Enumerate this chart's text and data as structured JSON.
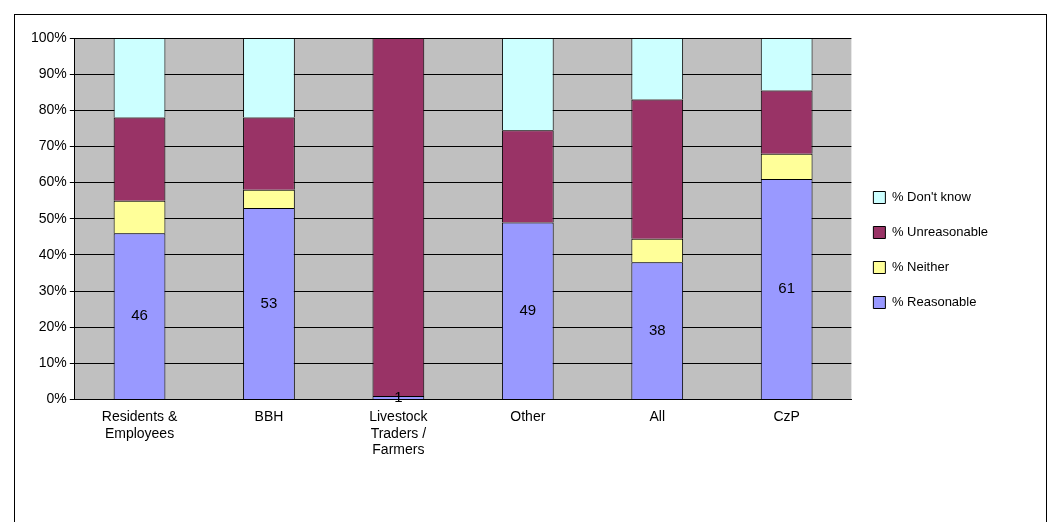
{
  "chart_data": {
    "type": "bar",
    "stacked": true,
    "categories": [
      "Residents & Employees",
      "BBH",
      "Livestock Traders / Farmers",
      "Other",
      "All",
      "CzP"
    ],
    "series": [
      {
        "name": "% Reasonable",
        "color": "#9999ff",
        "values": [
          46,
          53,
          1,
          49,
          38,
          61
        ],
        "value_labels": [
          "46",
          "53",
          "1",
          "49",
          "38",
          "61"
        ]
      },
      {
        "name": "% Neither",
        "color": "#ffff99",
        "values": [
          9,
          5,
          0,
          0,
          6.5,
          7
        ]
      },
      {
        "name": "% Unreasonable",
        "color": "#993366",
        "values": [
          23,
          20,
          99,
          25.5,
          38.5,
          17.5
        ]
      },
      {
        "name": "% Don't know",
        "color": "#ccffff",
        "values": [
          22,
          22,
          0,
          25.5,
          17,
          14.5
        ]
      }
    ],
    "ylim": [
      0,
      100
    ],
    "yticks": [
      {
        "value": 0,
        "label": "0%"
      },
      {
        "value": 10,
        "label": "10%"
      },
      {
        "value": 20,
        "label": "20%"
      },
      {
        "value": 30,
        "label": "30%"
      },
      {
        "value": 40,
        "label": "40%"
      },
      {
        "value": 50,
        "label": "50%"
      },
      {
        "value": 60,
        "label": "60%"
      },
      {
        "value": 70,
        "label": "70%"
      },
      {
        "value": 80,
        "label": "80%"
      },
      {
        "value": 90,
        "label": "90%"
      },
      {
        "value": 100,
        "label": "100%"
      }
    ],
    "grid": "y",
    "legend": "right"
  }
}
